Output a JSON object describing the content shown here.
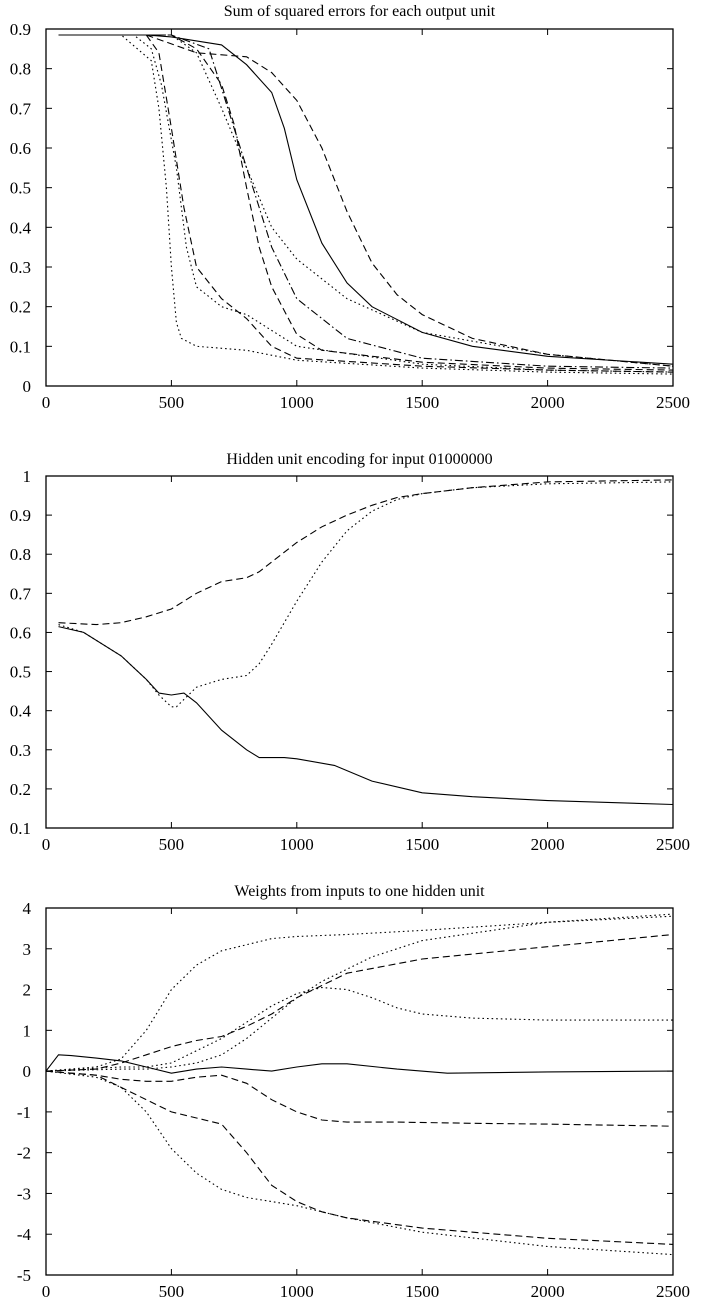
{
  "chart_data": [
    {
      "type": "line",
      "title": "Sum of squared errors for each output unit",
      "xlabel": "",
      "ylabel": "",
      "xlim": [
        0,
        2500
      ],
      "ylim": [
        0,
        0.9
      ],
      "xticks": [
        0,
        500,
        1000,
        1500,
        2000,
        2500
      ],
      "yticks": [
        0,
        0.1,
        0.2,
        0.3,
        0.4,
        0.5,
        0.6,
        0.7,
        0.8,
        0.9
      ],
      "grid": false,
      "series": [
        {
          "style": "solid",
          "x": [
            50,
            200,
            400,
            500,
            600,
            700,
            800,
            900,
            950,
            1000,
            1100,
            1200,
            1300,
            1500,
            1700,
            2000,
            2500
          ],
          "y": [
            0.885,
            0.885,
            0.885,
            0.88,
            0.87,
            0.86,
            0.81,
            0.74,
            0.65,
            0.52,
            0.36,
            0.26,
            0.2,
            0.135,
            0.1,
            0.075,
            0.055
          ]
        },
        {
          "style": "dashed",
          "x": [
            50,
            400,
            600,
            700,
            800,
            900,
            1000,
            1100,
            1200,
            1300,
            1400,
            1500,
            1700,
            2000,
            2500
          ],
          "y": [
            0.885,
            0.885,
            0.84,
            0.835,
            0.83,
            0.79,
            0.72,
            0.6,
            0.44,
            0.31,
            0.23,
            0.18,
            0.12,
            0.08,
            0.05
          ]
        },
        {
          "style": "dotted",
          "x": [
            50,
            300,
            420,
            450,
            480,
            500,
            520,
            540,
            600,
            700,
            800,
            1000,
            1500,
            2000,
            2500
          ],
          "y": [
            0.885,
            0.885,
            0.82,
            0.7,
            0.5,
            0.3,
            0.16,
            0.12,
            0.1,
            0.095,
            0.09,
            0.065,
            0.045,
            0.035,
            0.03
          ]
        },
        {
          "style": "dotted",
          "x": [
            50,
            350,
            420,
            460,
            520,
            560,
            600,
            700,
            800,
            1000,
            1500,
            2000,
            2500
          ],
          "y": [
            0.885,
            0.885,
            0.85,
            0.76,
            0.55,
            0.35,
            0.25,
            0.2,
            0.18,
            0.1,
            0.055,
            0.04,
            0.035
          ]
        },
        {
          "style": "dashed",
          "x": [
            50,
            400,
            450,
            500,
            550,
            600,
            700,
            800,
            900,
            1000,
            1500,
            2000,
            2500
          ],
          "y": [
            0.885,
            0.885,
            0.84,
            0.65,
            0.45,
            0.3,
            0.22,
            0.17,
            0.1,
            0.07,
            0.05,
            0.04,
            0.035
          ]
        },
        {
          "style": "dotted",
          "x": [
            50,
            500,
            600,
            700,
            800,
            900,
            1000,
            1200,
            1500,
            2000,
            2500
          ],
          "y": [
            0.885,
            0.885,
            0.84,
            0.7,
            0.55,
            0.4,
            0.32,
            0.22,
            0.135,
            0.08,
            0.05
          ]
        },
        {
          "style": "dashed",
          "x": [
            50,
            500,
            600,
            700,
            750,
            800,
            850,
            900,
            1000,
            1100,
            1500,
            2000,
            2500
          ],
          "y": [
            0.885,
            0.885,
            0.85,
            0.76,
            0.66,
            0.5,
            0.35,
            0.25,
            0.13,
            0.09,
            0.06,
            0.045,
            0.04
          ]
        },
        {
          "style": "dashdot",
          "x": [
            50,
            500,
            650,
            700,
            750,
            800,
            850,
            900,
            1000,
            1200,
            1500,
            2000,
            2500
          ],
          "y": [
            0.885,
            0.885,
            0.85,
            0.75,
            0.65,
            0.55,
            0.45,
            0.35,
            0.22,
            0.12,
            0.07,
            0.05,
            0.045
          ]
        }
      ]
    },
    {
      "type": "line",
      "title": "Hidden unit encoding for input 01000000",
      "xlabel": "",
      "ylabel": "",
      "xlim": [
        0,
        2500
      ],
      "ylim": [
        0.1,
        1
      ],
      "xticks": [
        0,
        500,
        1000,
        1500,
        2000,
        2500
      ],
      "yticks": [
        0.1,
        0.2,
        0.3,
        0.4,
        0.5,
        0.6,
        0.7,
        0.8,
        0.9,
        1
      ],
      "grid": false,
      "series": [
        {
          "style": "solid",
          "x": [
            50,
            150,
            300,
            400,
            450,
            500,
            550,
            600,
            700,
            800,
            850,
            950,
            1000,
            1150,
            1300,
            1500,
            1700,
            2000,
            2500
          ],
          "y": [
            0.615,
            0.6,
            0.54,
            0.48,
            0.445,
            0.44,
            0.445,
            0.42,
            0.35,
            0.3,
            0.28,
            0.28,
            0.277,
            0.26,
            0.22,
            0.19,
            0.18,
            0.17,
            0.16
          ]
        },
        {
          "style": "dotted",
          "x": [
            50,
            150,
            300,
            400,
            450,
            500,
            520,
            600,
            700,
            800,
            850,
            900,
            1000,
            1100,
            1200,
            1300,
            1400,
            1500,
            1700,
            2000,
            2500
          ],
          "y": [
            0.62,
            0.6,
            0.54,
            0.48,
            0.44,
            0.41,
            0.41,
            0.46,
            0.48,
            0.49,
            0.52,
            0.57,
            0.68,
            0.78,
            0.86,
            0.91,
            0.94,
            0.955,
            0.97,
            0.98,
            0.985
          ]
        },
        {
          "style": "dashed",
          "x": [
            50,
            200,
            300,
            400,
            500,
            600,
            700,
            800,
            850,
            900,
            1000,
            1100,
            1200,
            1300,
            1400,
            1500,
            1700,
            2000,
            2500
          ],
          "y": [
            0.625,
            0.62,
            0.625,
            0.64,
            0.66,
            0.7,
            0.73,
            0.74,
            0.755,
            0.78,
            0.83,
            0.87,
            0.9,
            0.925,
            0.945,
            0.955,
            0.97,
            0.985,
            0.99
          ]
        }
      ]
    },
    {
      "type": "line",
      "title": "Weights from inputs to one hidden unit",
      "xlabel": "",
      "ylabel": "",
      "xlim": [
        0,
        2500
      ],
      "ylim": [
        -5,
        4
      ],
      "xticks": [
        0,
        500,
        1000,
        1500,
        2000,
        2500
      ],
      "yticks": [
        -5,
        -4,
        -3,
        -2,
        -1,
        0,
        1,
        2,
        3,
        4
      ],
      "grid": false,
      "series": [
        {
          "style": "solid",
          "x": [
            0,
            50,
            100,
            200,
            300,
            400,
            500,
            600,
            700,
            800,
            900,
            1000,
            1100,
            1200,
            1400,
            1600,
            2000,
            2500
          ],
          "y": [
            0,
            0.4,
            0.38,
            0.32,
            0.25,
            0.1,
            -0.05,
            0.05,
            0.1,
            0.05,
            0,
            0.1,
            0.18,
            0.18,
            0.05,
            -0.05,
            -0.02,
            0
          ]
        },
        {
          "style": "dotted",
          "x": [
            0,
            200,
            300,
            400,
            500,
            600,
            700,
            800,
            900,
            1000,
            1200,
            1500,
            2000,
            2500
          ],
          "y": [
            0,
            0.1,
            0.3,
            1.0,
            2.0,
            2.6,
            2.95,
            3.1,
            3.25,
            3.3,
            3.35,
            3.45,
            3.65,
            3.8
          ]
        },
        {
          "style": "dashed",
          "x": [
            0,
            200,
            300,
            400,
            500,
            600,
            700,
            800,
            900,
            1000,
            1100,
            1200,
            1500,
            2000,
            2500
          ],
          "y": [
            0,
            0.05,
            0.2,
            0.4,
            0.6,
            0.75,
            0.85,
            1.1,
            1.4,
            1.8,
            2.1,
            2.4,
            2.75,
            3.05,
            3.35
          ]
        },
        {
          "style": "dotted",
          "x": [
            0,
            300,
            400,
            500,
            600,
            700,
            800,
            900,
            1000,
            1100,
            1200,
            1300,
            1500,
            2000,
            2500
          ],
          "y": [
            0,
            0.05,
            0.05,
            0.1,
            0.2,
            0.4,
            0.8,
            1.3,
            1.8,
            2.2,
            2.5,
            2.8,
            3.2,
            3.65,
            3.85
          ]
        },
        {
          "style": "dotted",
          "x": [
            0,
            300,
            400,
            500,
            600,
            700,
            800,
            900,
            1000,
            1100,
            1200,
            1300,
            1400,
            1500,
            1700,
            2000,
            2500
          ],
          "y": [
            0,
            0.1,
            0.1,
            0.2,
            0.5,
            0.8,
            1.2,
            1.6,
            1.9,
            2.05,
            2.0,
            1.8,
            1.55,
            1.4,
            1.3,
            1.25,
            1.25
          ]
        },
        {
          "style": "dashed",
          "x": [
            0,
            200,
            300,
            400,
            500,
            600,
            700,
            800,
            900,
            1000,
            1100,
            1200,
            1400,
            1700,
            2000,
            2500
          ],
          "y": [
            0,
            -0.1,
            -0.2,
            -0.25,
            -0.25,
            -0.15,
            -0.1,
            -0.3,
            -0.7,
            -1.0,
            -1.2,
            -1.25,
            -1.25,
            -1.28,
            -1.3,
            -1.35
          ]
        },
        {
          "style": "dashed",
          "x": [
            0,
            200,
            300,
            400,
            500,
            600,
            700,
            800,
            900,
            1000,
            1100,
            1200,
            1500,
            2000,
            2500
          ],
          "y": [
            0,
            -0.1,
            -0.4,
            -0.7,
            -1.0,
            -1.15,
            -1.3,
            -2.0,
            -2.8,
            -3.2,
            -3.45,
            -3.6,
            -3.85,
            -4.1,
            -4.25
          ]
        },
        {
          "style": "dotted",
          "x": [
            0,
            200,
            300,
            400,
            500,
            600,
            700,
            800,
            900,
            1000,
            1200,
            1500,
            2000,
            2500
          ],
          "y": [
            0,
            -0.15,
            -0.4,
            -1.0,
            -1.9,
            -2.5,
            -2.9,
            -3.1,
            -3.2,
            -3.3,
            -3.6,
            -3.95,
            -4.3,
            -4.5
          ]
        }
      ]
    }
  ]
}
